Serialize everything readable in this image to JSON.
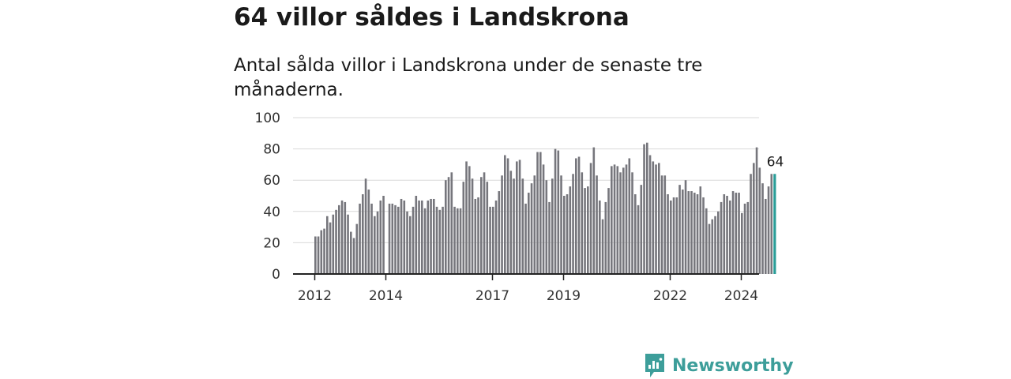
{
  "header": {
    "title": "64 villor såldes i Landskrona",
    "subtitle": "Antal sålda villor i Landskrona under de senaste tre månaderna."
  },
  "brand": {
    "name": "Newsworthy"
  },
  "chart_data": {
    "type": "bar",
    "title": "64 villor såldes i Landskrona",
    "subtitle": "Antal sålda villor i Landskrona under de senaste tre månaderna.",
    "ylim": [
      0,
      100
    ],
    "yticks": [
      0,
      20,
      40,
      60,
      80,
      100
    ],
    "xticks": [
      "2012",
      "2014",
      "2017",
      "2019",
      "2022",
      "2024"
    ],
    "grid": true,
    "colors": {
      "bar": "#76767c",
      "highlight": "#2a9d98",
      "grid": "#d9d9d9",
      "axis": "#222222"
    },
    "highlight_label": "64",
    "series": [
      {
        "values": [
          24,
          24,
          28,
          29,
          37,
          33,
          38,
          41,
          44,
          47,
          46,
          38,
          27,
          23,
          32,
          45,
          51,
          61,
          54,
          45,
          37,
          40,
          47,
          50,
          null,
          45,
          45,
          44,
          43,
          48,
          47,
          40,
          37,
          43,
          50,
          47,
          47,
          42,
          47,
          48,
          48,
          43,
          41,
          43,
          60,
          62,
          65,
          43,
          42,
          42,
          59,
          72,
          69,
          61,
          48,
          49,
          62,
          65,
          59,
          43,
          43,
          47,
          53,
          63,
          76,
          74,
          66,
          61,
          72,
          73,
          61,
          45,
          52,
          58,
          63,
          78,
          78,
          70,
          60,
          46,
          61,
          80,
          79,
          63,
          50,
          51,
          56,
          64,
          74,
          75,
          65,
          55,
          56,
          71,
          81,
          63,
          47,
          35,
          46,
          55,
          69,
          70,
          69,
          65,
          68,
          70,
          74,
          65,
          51,
          44,
          57,
          83,
          84,
          76,
          72,
          70,
          71,
          63,
          63,
          51,
          47,
          49,
          49,
          57,
          54,
          60,
          53,
          53,
          52,
          51,
          56,
          49,
          42,
          32,
          35,
          37,
          40,
          46,
          51,
          50,
          47,
          53,
          52,
          52,
          39,
          45,
          46,
          64,
          71,
          81,
          68,
          58,
          48,
          56,
          64,
          64
        ]
      }
    ]
  }
}
